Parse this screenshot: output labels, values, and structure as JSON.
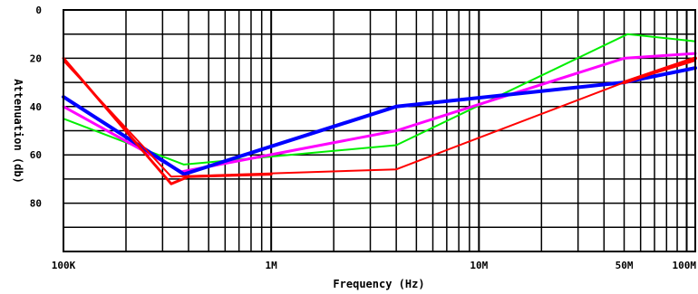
{
  "chart_data": {
    "type": "line",
    "title": "",
    "xlabel": "Frequency (Hz)",
    "ylabel": "Attenuation (db)",
    "x_scale": "log",
    "xlim": [
      100000,
      110000000
    ],
    "ylim": [
      0,
      100
    ],
    "y_inverted": true,
    "grid": true,
    "legend": "none",
    "x_ticks": [
      {
        "value": 100000,
        "label": "100K"
      },
      {
        "value": 1000000,
        "label": "1M"
      },
      {
        "value": 10000000,
        "label": "10M"
      },
      {
        "value": 50000000,
        "label": "50M"
      },
      {
        "value": 100000000,
        "label": "100M"
      }
    ],
    "y_ticks": [
      {
        "value": 0,
        "label": "0"
      },
      {
        "value": 20,
        "label": "20"
      },
      {
        "value": 40,
        "label": "40"
      },
      {
        "value": 60,
        "label": "60"
      },
      {
        "value": 80,
        "label": "80"
      }
    ],
    "series": [
      {
        "color": "#00ee00",
        "width": 2,
        "points": [
          [
            100000,
            45
          ],
          [
            380000,
            64
          ],
          [
            4000000,
            56
          ],
          [
            52000000,
            10
          ],
          [
            110000000,
            13
          ]
        ]
      },
      {
        "color": "#ff00ff",
        "width": 3,
        "points": [
          [
            100000,
            40
          ],
          [
            370000,
            67
          ],
          [
            4000000,
            50
          ],
          [
            50000000,
            20
          ],
          [
            110000000,
            18
          ]
        ]
      },
      {
        "color": "#0000ff",
        "width": 4,
        "points": [
          [
            100000,
            36
          ],
          [
            380000,
            68
          ],
          [
            4000000,
            40
          ],
          [
            50000000,
            30
          ],
          [
            110000000,
            24
          ]
        ]
      },
      {
        "color": "#ff0000",
        "width": 2,
        "points": [
          [
            100000,
            21
          ],
          [
            330000,
            69
          ],
          [
            4000000,
            66
          ],
          [
            50000000,
            30
          ],
          [
            110000000,
            21
          ]
        ]
      },
      {
        "color": "#ff0000",
        "width": 3,
        "points": [
          [
            100000,
            20
          ],
          [
            330000,
            72
          ],
          [
            400000,
            69
          ],
          [
            1000000,
            68
          ]
        ]
      },
      {
        "color": "#ff0000",
        "width": 4,
        "points": [
          [
            50000000,
            30
          ],
          [
            110000000,
            20
          ]
        ]
      }
    ]
  }
}
